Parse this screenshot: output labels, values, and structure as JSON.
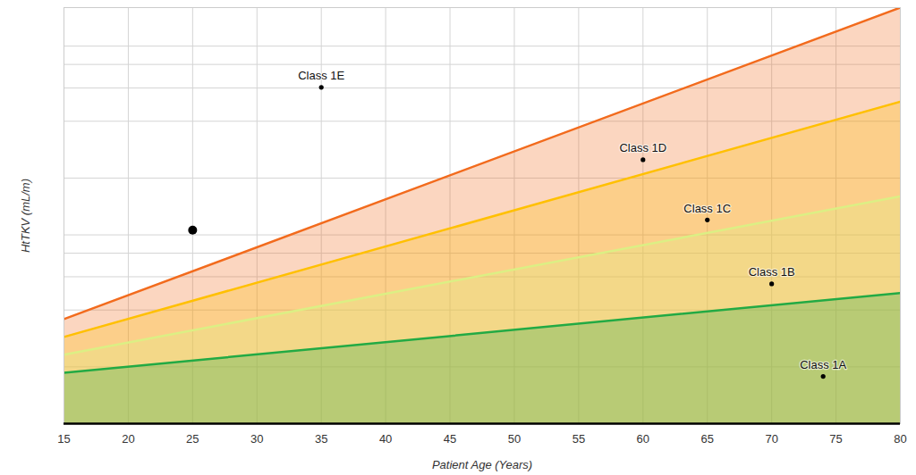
{
  "chart_data": {
    "type": "line",
    "x_label": "Patient Age (Years)",
    "y_label": "HtTKV (mL/m)",
    "log": "y",
    "grid": true,
    "tick_labels": "x",
    "xlim": [
      15,
      80
    ],
    "xticks": [
      15,
      20,
      25,
      30,
      35,
      40,
      45,
      50,
      55,
      60,
      65,
      70,
      75,
      80
    ],
    "ylim": [
      100,
      16000
    ],
    "yticks": [
      100,
      200,
      400,
      600,
      800,
      1000,
      2000,
      4000,
      6000,
      8000,
      10000
    ],
    "x": [
      15,
      80
    ],
    "series": [
      {
        "color": "#22aa44",
        "values": [
          186,
          492
        ]
      },
      {
        "color": "#dcef84",
        "values": [
          232,
          1600
        ]
      },
      {
        "color": "#ffc000",
        "values": [
          288,
          5080
        ]
      },
      {
        "color": "#f26b1d",
        "values": [
          358,
          16000
        ]
      }
    ],
    "points": [
      {
        "x": 35,
        "y": 6050,
        "label": "Class 1E"
      },
      {
        "x": 60,
        "y": 2500,
        "label": "Class 1D"
      },
      {
        "x": 65,
        "y": 1200,
        "label": "Class 1C"
      },
      {
        "x": 70,
        "y": 550,
        "label": "Class 1B"
      },
      {
        "x": 74,
        "y": 178,
        "label": "Class 1A"
      }
    ],
    "patient": {
      "x": 25,
      "y": 1060
    }
  }
}
